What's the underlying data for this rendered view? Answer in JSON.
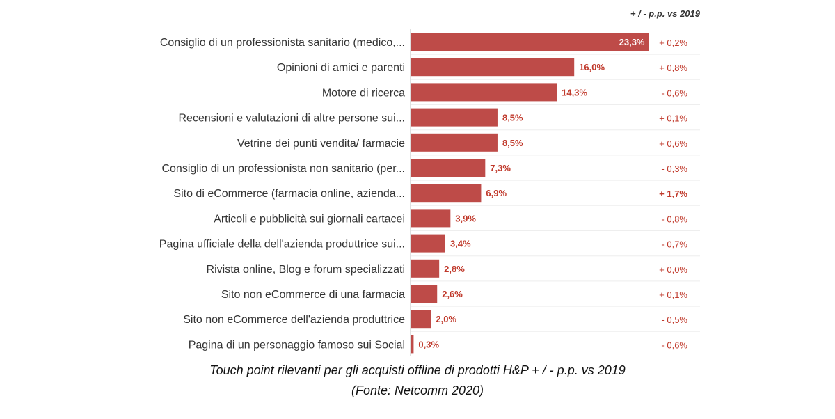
{
  "chart_data": {
    "type": "bar",
    "orientation": "horizontal",
    "delta_header": "+ / - p.p. vs 2019",
    "categories": [
      "Consiglio di un professionista sanitario (medico,...",
      "Opinioni di amici e parenti",
      "Motore di ricerca",
      "Recensioni e valutazioni di altre persone sui...",
      "Vetrine dei punti vendita/ farmacie",
      "Consiglio di un professionista non sanitario (per...",
      "Sito di eCommerce (farmacia online, azienda...",
      "Articoli e pubblicità sui giornali cartacei",
      "Pagina ufficiale della dell'azienda produttrice sui...",
      "Rivista online, Blog e forum specializzati",
      "Sito non eCommerce di una farmacia",
      "Sito non eCommerce dell'azienda produttrice",
      "Pagina di un personaggio famoso sui Social"
    ],
    "values": [
      23.3,
      16.0,
      14.3,
      8.5,
      8.5,
      7.3,
      6.9,
      3.9,
      3.4,
      2.8,
      2.6,
      2.0,
      0.3
    ],
    "value_labels": [
      "23,3%",
      "16,0%",
      "14,3%",
      "8,5%",
      "8,5%",
      "7,3%",
      "6,9%",
      "3,9%",
      "3,4%",
      "2,8%",
      "2,6%",
      "2,0%",
      "0,3%"
    ],
    "deltas": [
      "+ 0,2%",
      "+ 0,8%",
      "- 0,6%",
      "+ 0,1%",
      "+ 0,6%",
      "- 0,3%",
      "+ 1,7%",
      "- 0,8%",
      "- 0,7%",
      "+ 0,0%",
      "+ 0,1%",
      "- 0,5%",
      "- 0,6%"
    ],
    "delta_bold": [
      false,
      false,
      false,
      false,
      false,
      false,
      true,
      false,
      false,
      false,
      false,
      false,
      false
    ],
    "colors": {
      "bar": "#be4b48",
      "value_label": "#c0392b",
      "value_label_inside": "#ffffff",
      "delta": "#c0392b",
      "axis": "#bfbfbf"
    }
  },
  "caption": {
    "line1": "Touch point rilevanti per gli acquisti offline di prodotti H&P + / - p.p. vs 2019",
    "line2": "(Fonte: Netcomm 2020)"
  }
}
